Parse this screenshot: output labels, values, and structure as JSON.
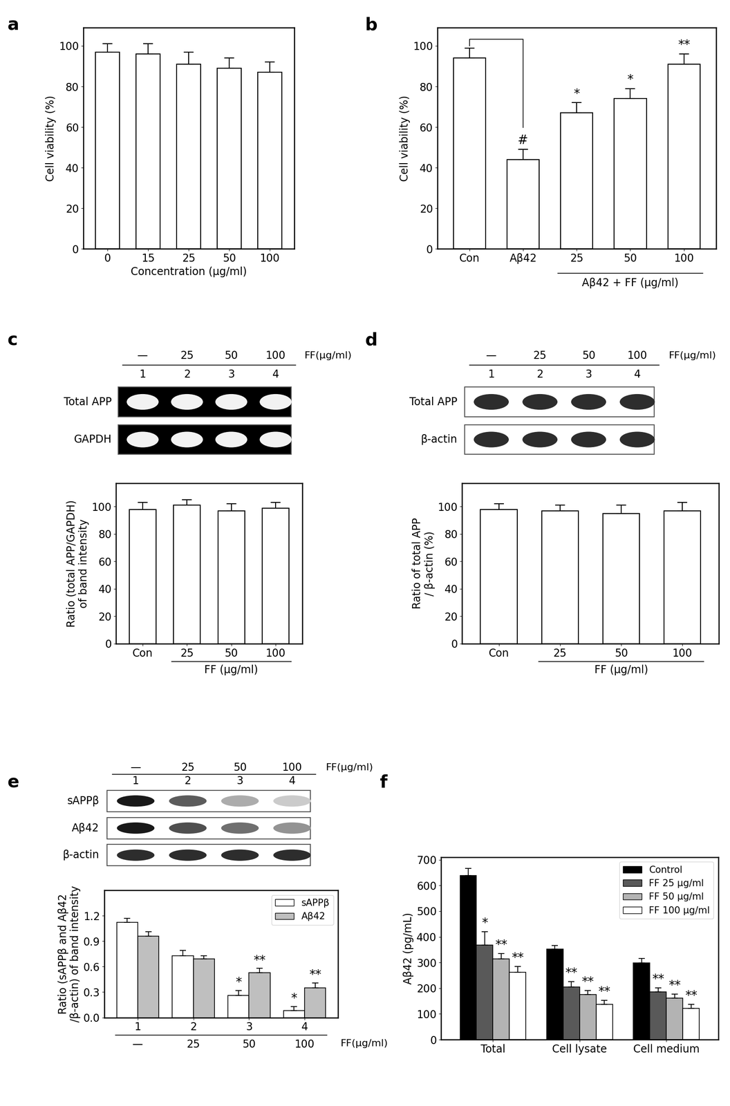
{
  "chart_data": [
    {
      "panel_label": "a",
      "type": "bar",
      "categories": [
        "0",
        "15",
        "25",
        "50",
        "100"
      ],
      "values": [
        97,
        96,
        91,
        89,
        87
      ],
      "errors": [
        4,
        5,
        6,
        5,
        5
      ],
      "color": "#ffffff",
      "x_label": "Concentration (μg/ml)",
      "y_label": "Cell viability (%)",
      "ylim": [
        0,
        109
      ],
      "yticks": [
        0,
        20,
        40,
        60,
        80,
        100
      ]
    },
    {
      "panel_label": "b",
      "type": "bar",
      "categories": [
        "Con",
        "Aβ42",
        "25",
        "50",
        "100"
      ],
      "values": [
        94,
        44,
        67,
        74,
        91
      ],
      "errors": [
        5,
        5,
        5,
        5,
        5
      ],
      "significance": [
        null,
        "#",
        "*",
        "*",
        "**"
      ],
      "comparison": {
        "from": 0,
        "to": 1
      },
      "group_label": {
        "text": "Aβ42 + FF (μg/ml)",
        "from": 2,
        "to": 4
      },
      "color": "#ffffff",
      "y_label": "Cell viability (%)",
      "ylim": [
        0,
        109
      ],
      "yticks": [
        0,
        20,
        40,
        60,
        80,
        100
      ]
    },
    {
      "panel_label": "c",
      "type": "bar",
      "blot": {
        "header": [
          "—",
          "25",
          "50",
          "100"
        ],
        "header_unit": "FF(μg/ml)",
        "lanes": [
          "1",
          "2",
          "3",
          "4"
        ],
        "rows": [
          "Total APP",
          "GAPDH"
        ],
        "color": "#000000"
      },
      "categories": [
        "Con",
        "25",
        "50",
        "100"
      ],
      "values": [
        98,
        101,
        97,
        99
      ],
      "errors": [
        5,
        4,
        5,
        4
      ],
      "group_label": {
        "text": "FF (μg/ml)",
        "from": 1,
        "to": 3
      },
      "color": "#ffffff",
      "y_label": "Ratio (total APP/GAPDH)\nof band intensity",
      "ylim": [
        0,
        117
      ],
      "yticks": [
        0,
        20,
        40,
        60,
        80,
        100
      ]
    },
    {
      "panel_label": "d",
      "type": "bar",
      "blot": {
        "header": [
          "—",
          "25",
          "50",
          "100"
        ],
        "header_unit": "FF(μg/ml)",
        "lanes": [
          "1",
          "2",
          "3",
          "4"
        ],
        "rows": [
          "Total APP",
          "β-actin"
        ],
        "color": "#ffffff"
      },
      "categories": [
        "Con",
        "25",
        "50",
        "100"
      ],
      "values": [
        98,
        97,
        95,
        97
      ],
      "errors": [
        4,
        4,
        6,
        6
      ],
      "group_label": {
        "text": "FF (μg/ml)",
        "from": 1,
        "to": 3
      },
      "color": "#ffffff",
      "y_label": "Ratio of total APP\n/ β-actin (%)",
      "ylim": [
        0,
        117
      ],
      "yticks": [
        0,
        20,
        40,
        60,
        80,
        100
      ]
    },
    {
      "panel_label": "e",
      "type": "grouped_bar",
      "blot": {
        "header": [
          "—",
          "25",
          "50",
          "100"
        ],
        "header_unit": "FF(μg/ml)",
        "lanes": [
          "1",
          "2",
          "3",
          "4"
        ],
        "rows": [
          "sAPPβ",
          "Aβ42",
          "β-actin"
        ],
        "color": "#ffffff"
      },
      "categories": [
        "1",
        "2",
        "3",
        "4"
      ],
      "sublabels": [
        "—",
        "25",
        "50",
        "100"
      ],
      "sublabel_unit": "FF(μg/ml)",
      "series": [
        {
          "name": "sAPPβ",
          "color": "#ffffff",
          "values": [
            1.12,
            0.73,
            0.26,
            0.08
          ],
          "errors": [
            0.05,
            0.06,
            0.06,
            0.05
          ],
          "significance": [
            null,
            null,
            "*",
            "*"
          ]
        },
        {
          "name": "Aβ42",
          "color": "#bfbfbf",
          "values": [
            0.96,
            0.69,
            0.53,
            0.35
          ],
          "errors": [
            0.05,
            0.04,
            0.05,
            0.06
          ],
          "significance": [
            null,
            null,
            "**",
            "**"
          ]
        }
      ],
      "legend": "upper right",
      "y_label": "Ratio (sAPPβ and Aβ42\n/β-actin) of band intensity",
      "ylim": [
        0,
        1.5
      ],
      "yticks": [
        0.0,
        0.3,
        0.6,
        0.9,
        1.2
      ]
    },
    {
      "panel_label": "f",
      "type": "grouped_bar",
      "categories": [
        "Total",
        "Cell lysate",
        "Cell medium"
      ],
      "series": [
        {
          "name": "Control",
          "color": "#000000",
          "values": [
            638,
            352,
            298
          ],
          "errors": [
            28,
            14,
            18
          ],
          "significance": [
            null,
            null,
            null
          ]
        },
        {
          "name": "FF 25 μg/ml",
          "color": "#595959",
          "values": [
            368,
            205,
            186
          ],
          "errors": [
            52,
            20,
            15
          ],
          "significance": [
            "*",
            "**",
            "**"
          ]
        },
        {
          "name": "FF 50 μg/ml",
          "color": "#b3b3b3",
          "values": [
            315,
            176,
            162
          ],
          "errors": [
            20,
            15,
            15
          ],
          "significance": [
            "**",
            "**",
            "**"
          ]
        },
        {
          "name": "FF 100 μg/ml",
          "color": "#ffffff",
          "values": [
            262,
            138,
            122
          ],
          "errors": [
            22,
            15,
            15
          ],
          "significance": [
            "**",
            "**",
            "**"
          ]
        }
      ],
      "legend": "upper right",
      "y_label": "Aβ42 (pg/mL)",
      "ylim": [
        0,
        710
      ],
      "yticks": [
        0,
        100,
        200,
        300,
        400,
        500,
        600,
        700
      ]
    }
  ]
}
